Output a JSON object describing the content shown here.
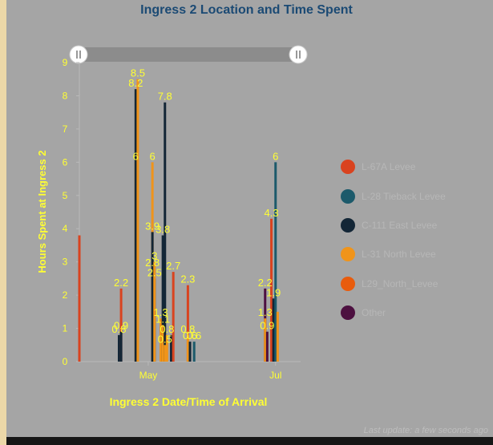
{
  "dashboard": {
    "title": "Ingress 2 Location and Time Spent",
    "footer": "Last update: a few seconds ago"
  },
  "colors": {
    "panel": "#a5a5a5",
    "title": "#1b4a74",
    "axis_text": "#ffff33",
    "slider_track": "#8c8c8c"
  },
  "chart_data": {
    "type": "bar",
    "xlabel": "Ingress 2 Date/Time of Arrival",
    "ylabel": "Hours Spent at Ingress 2",
    "ylim": [
      0,
      9
    ],
    "yticks": [
      0,
      1,
      2,
      3,
      4,
      5,
      6,
      7,
      8,
      9
    ],
    "x_axis_type": "date",
    "xlim": [
      "2023-03-29",
      "2023-07-13"
    ],
    "xticks": [
      {
        "label": "May",
        "date": "2023-05-01"
      },
      {
        "label": "Jul",
        "date": "2023-07-01"
      }
    ],
    "legend_position": "right",
    "range_slider": true,
    "series": [
      {
        "name": "L-67A Levee",
        "color": "#d9431f"
      },
      {
        "name": "L-28 Tieback Levee",
        "color": "#1c5a6b"
      },
      {
        "name": "C-111 East Levee",
        "color": "#132636"
      },
      {
        "name": "L-31 North Levee",
        "color": "#f0941a"
      },
      {
        "name": "L29_North_Levee",
        "color": "#e85c0d"
      },
      {
        "name": "Other",
        "color": "#4d1040"
      }
    ],
    "bars": [
      {
        "x": "2023-03-29",
        "series": "L-67A Levee",
        "value": 3.8,
        "label": ""
      },
      {
        "x": "2023-04-17",
        "series": "C-111 East Levee",
        "value": 0.8,
        "label": "0.8"
      },
      {
        "x": "2023-04-18",
        "series": "L-67A Levee",
        "value": 2.2,
        "label": "2.2"
      },
      {
        "x": "2023-04-18",
        "series": "C-111 East Levee",
        "value": 0.9,
        "label": "0.9"
      },
      {
        "x": "2023-04-25",
        "series": "L-31 North Levee",
        "value": 6,
        "label": "6"
      },
      {
        "x": "2023-04-25",
        "series": "C-111 East Levee",
        "value": 8.2,
        "label": "8.2"
      },
      {
        "x": "2023-04-26",
        "series": "L-31 North Levee",
        "value": 8.5,
        "label": "8.5"
      },
      {
        "x": "2023-05-03",
        "series": "L-31 North Levee",
        "value": 6,
        "label": "6"
      },
      {
        "x": "2023-05-03",
        "series": "L-31 North Levee",
        "value": 2.8,
        "label": "2.8"
      },
      {
        "x": "2023-05-03",
        "series": "C-111 East Levee",
        "value": 3.9,
        "label": "3.9"
      },
      {
        "x": "2023-05-04",
        "series": "C-111 East Levee",
        "value": 2.5,
        "label": "2.5"
      },
      {
        "x": "2023-05-04",
        "series": "L-31 North Levee",
        "value": 3,
        "label": "3"
      },
      {
        "x": "2023-05-07",
        "series": "L-31 North Levee",
        "value": 1.3,
        "label": "1.3"
      },
      {
        "x": "2023-05-08",
        "series": "C-111 East Levee",
        "value": 3.8,
        "label": "3.8"
      },
      {
        "x": "2023-05-08",
        "series": "L-31 North Levee",
        "value": 1.1,
        "label": "1.1"
      },
      {
        "x": "2023-05-09",
        "series": "C-111 East Levee",
        "value": 7.8,
        "label": "7.8"
      },
      {
        "x": "2023-05-09",
        "series": "L-31 North Levee",
        "value": 0.5,
        "label": "0.5"
      },
      {
        "x": "2023-05-10",
        "series": "L-31 North Levee",
        "value": 0.8,
        "label": "0.8"
      },
      {
        "x": "2023-05-12",
        "series": "C-111 East Levee",
        "value": 0.8,
        "label": ""
      },
      {
        "x": "2023-05-13",
        "series": "L-67A Levee",
        "value": 2.7,
        "label": "2.7"
      },
      {
        "x": "2023-05-20",
        "series": "L-67A Levee",
        "value": 2.3,
        "label": "2.3"
      },
      {
        "x": "2023-05-20",
        "series": "L-31 North Levee",
        "value": 0.8,
        "label": "0.8"
      },
      {
        "x": "2023-05-21",
        "series": "C-111 East Levee",
        "value": 0.6,
        "label": "0.6"
      },
      {
        "x": "2023-05-23",
        "series": "L-28 Tieback Levee",
        "value": 0.6,
        "label": "0.6"
      },
      {
        "x": "2023-06-26",
        "series": "Other",
        "value": 2.2,
        "label": "2.2"
      },
      {
        "x": "2023-06-26",
        "series": "L-31 North Levee",
        "value": 1.3,
        "label": "1.3"
      },
      {
        "x": "2023-06-27",
        "series": "Other",
        "value": 0.9,
        "label": "0.9"
      },
      {
        "x": "2023-06-29",
        "series": "L-67A Levee",
        "value": 4.3,
        "label": "4.3"
      },
      {
        "x": "2023-06-30",
        "series": "C-111 East Levee",
        "value": 1.9,
        "label": "1.9"
      },
      {
        "x": "2023-07-01",
        "series": "L-28 Tieback Levee",
        "value": 6,
        "label": "6"
      },
      {
        "x": "2023-07-02",
        "series": "L-31 North Levee",
        "value": 1.5,
        "label": ""
      }
    ]
  }
}
